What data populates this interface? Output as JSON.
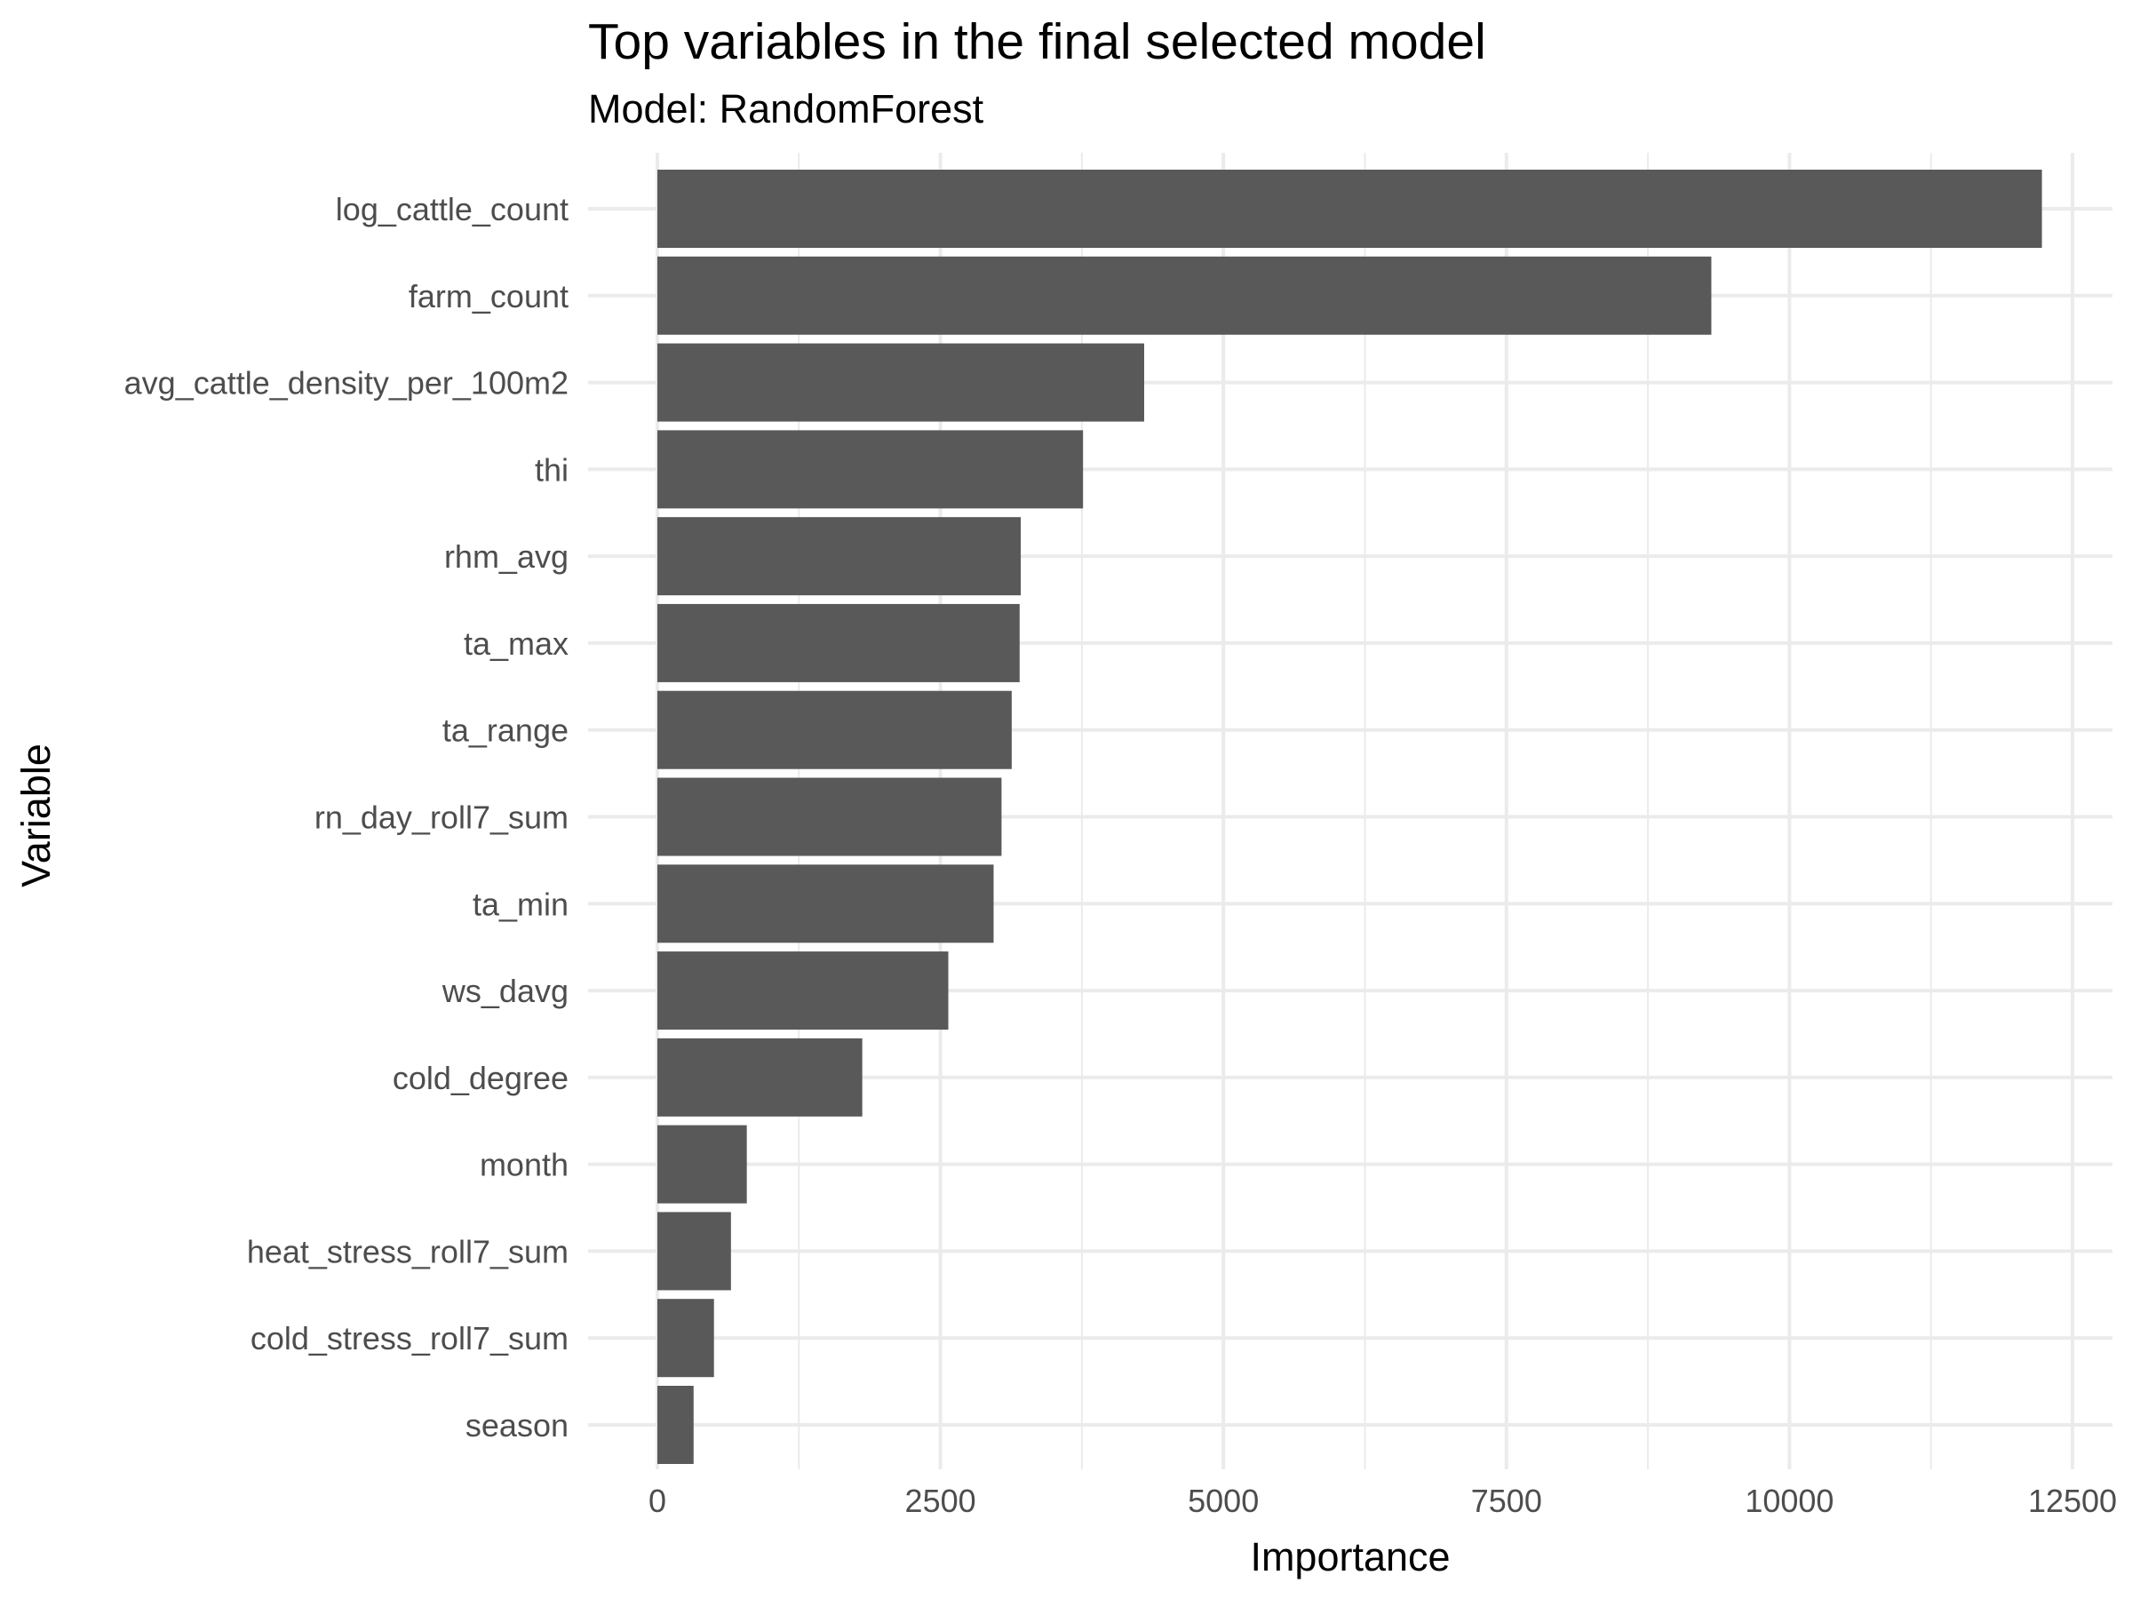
{
  "chart_data": {
    "type": "bar",
    "orientation": "horizontal",
    "title": "Top variables in the final selected model",
    "subtitle": "Model: RandomForest",
    "xlabel": "Importance",
    "ylabel": "Variable",
    "xlim": [
      0,
      12500
    ],
    "xticks": [
      0,
      2500,
      5000,
      7500,
      10000,
      12500
    ],
    "grid": true,
    "bar_color": "#595959",
    "categories": [
      "log_cattle_count",
      "farm_count",
      "avg_cattle_density_per_100m2",
      "thi",
      "rhm_avg",
      "ta_max",
      "ta_range",
      "rn_day_roll7_sum",
      "ta_min",
      "ws_davg",
      "cold_degree",
      "month",
      "heat_stress_roll7_sum",
      "cold_stress_roll7_sum",
      "season"
    ],
    "values": [
      12230,
      9310,
      4300,
      3760,
      3210,
      3200,
      3130,
      3040,
      2970,
      2570,
      1810,
      790,
      650,
      500,
      320
    ]
  }
}
